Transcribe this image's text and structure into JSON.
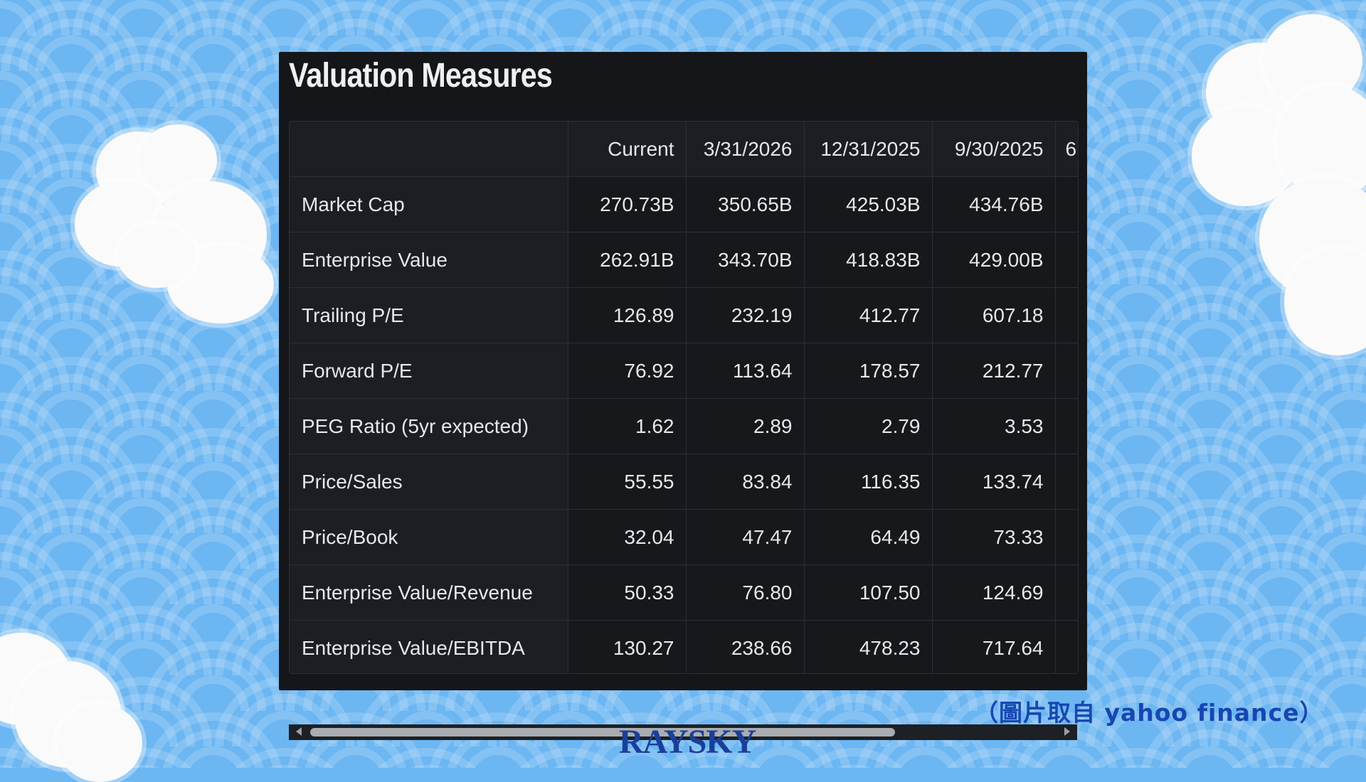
{
  "panel": {
    "title": "Valuation Measures"
  },
  "table": {
    "headers": [
      "",
      "Current",
      "3/31/2026",
      "12/31/2025",
      "9/30/2025",
      "6"
    ],
    "rows": [
      {
        "label": "Market Cap",
        "values": [
          "270.73B",
          "350.65B",
          "425.03B",
          "434.76B"
        ]
      },
      {
        "label": "Enterprise Value",
        "values": [
          "262.91B",
          "343.70B",
          "418.83B",
          "429.00B"
        ]
      },
      {
        "label": "Trailing P/E",
        "values": [
          "126.89",
          "232.19",
          "412.77",
          "607.18"
        ]
      },
      {
        "label": "Forward P/E",
        "values": [
          "76.92",
          "113.64",
          "178.57",
          "212.77"
        ]
      },
      {
        "label": "PEG Ratio (5yr expected)",
        "values": [
          "1.62",
          "2.89",
          "2.79",
          "3.53"
        ]
      },
      {
        "label": "Price/Sales",
        "values": [
          "55.55",
          "83.84",
          "116.35",
          "133.74"
        ]
      },
      {
        "label": "Price/Book",
        "values": [
          "32.04",
          "47.47",
          "64.49",
          "73.33"
        ]
      },
      {
        "label": "Enterprise Value/Revenue",
        "values": [
          "50.33",
          "76.80",
          "107.50",
          "124.69"
        ]
      },
      {
        "label": "Enterprise Value/EBITDA",
        "values": [
          "130.27",
          "238.66",
          "478.23",
          "717.64"
        ]
      }
    ]
  },
  "credit": "（圖片取自 yahoo finance）",
  "logo": "RAYSKY",
  "icons": {
    "scroll_left": "triangle-left-icon",
    "scroll_right": "triangle-right-icon"
  }
}
